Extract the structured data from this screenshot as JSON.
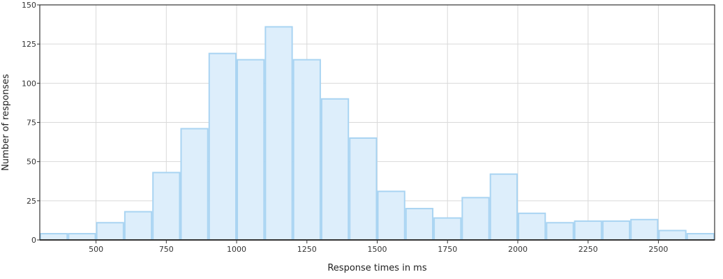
{
  "chart_data": {
    "type": "bar",
    "xlabel": "Response times in ms",
    "ylabel": "Number of responses",
    "xlim": [
      300,
      2700
    ],
    "ylim": [
      0,
      150
    ],
    "x_ticks": [
      500,
      750,
      1000,
      1250,
      1500,
      1750,
      2000,
      2250,
      2500
    ],
    "y_ticks": [
      0,
      25,
      50,
      75,
      100,
      125,
      150
    ],
    "grid": true,
    "bins": [
      {
        "start": 300,
        "end": 400,
        "count": 4
      },
      {
        "start": 400,
        "end": 500,
        "count": 4
      },
      {
        "start": 500,
        "end": 600,
        "count": 11
      },
      {
        "start": 600,
        "end": 700,
        "count": 18
      },
      {
        "start": 700,
        "end": 800,
        "count": 43
      },
      {
        "start": 800,
        "end": 900,
        "count": 71
      },
      {
        "start": 900,
        "end": 1000,
        "count": 119
      },
      {
        "start": 1000,
        "end": 1100,
        "count": 115
      },
      {
        "start": 1100,
        "end": 1200,
        "count": 136
      },
      {
        "start": 1200,
        "end": 1300,
        "count": 115
      },
      {
        "start": 1300,
        "end": 1400,
        "count": 90
      },
      {
        "start": 1400,
        "end": 1500,
        "count": 65
      },
      {
        "start": 1500,
        "end": 1600,
        "count": 31
      },
      {
        "start": 1600,
        "end": 1700,
        "count": 20
      },
      {
        "start": 1700,
        "end": 1800,
        "count": 14
      },
      {
        "start": 1800,
        "end": 1900,
        "count": 27
      },
      {
        "start": 1900,
        "end": 2000,
        "count": 42
      },
      {
        "start": 2000,
        "end": 2100,
        "count": 17
      },
      {
        "start": 2100,
        "end": 2200,
        "count": 11
      },
      {
        "start": 2200,
        "end": 2300,
        "count": 12
      },
      {
        "start": 2300,
        "end": 2400,
        "count": 12
      },
      {
        "start": 2400,
        "end": 2500,
        "count": 13
      },
      {
        "start": 2500,
        "end": 2600,
        "count": 6
      },
      {
        "start": 2600,
        "end": 2700,
        "count": 4
      }
    ],
    "colors": {
      "bar_fill": "#ddeefb",
      "bar_stroke": "#a9d4f2",
      "grid": "#d9d9d9",
      "axis": "#333333"
    }
  }
}
